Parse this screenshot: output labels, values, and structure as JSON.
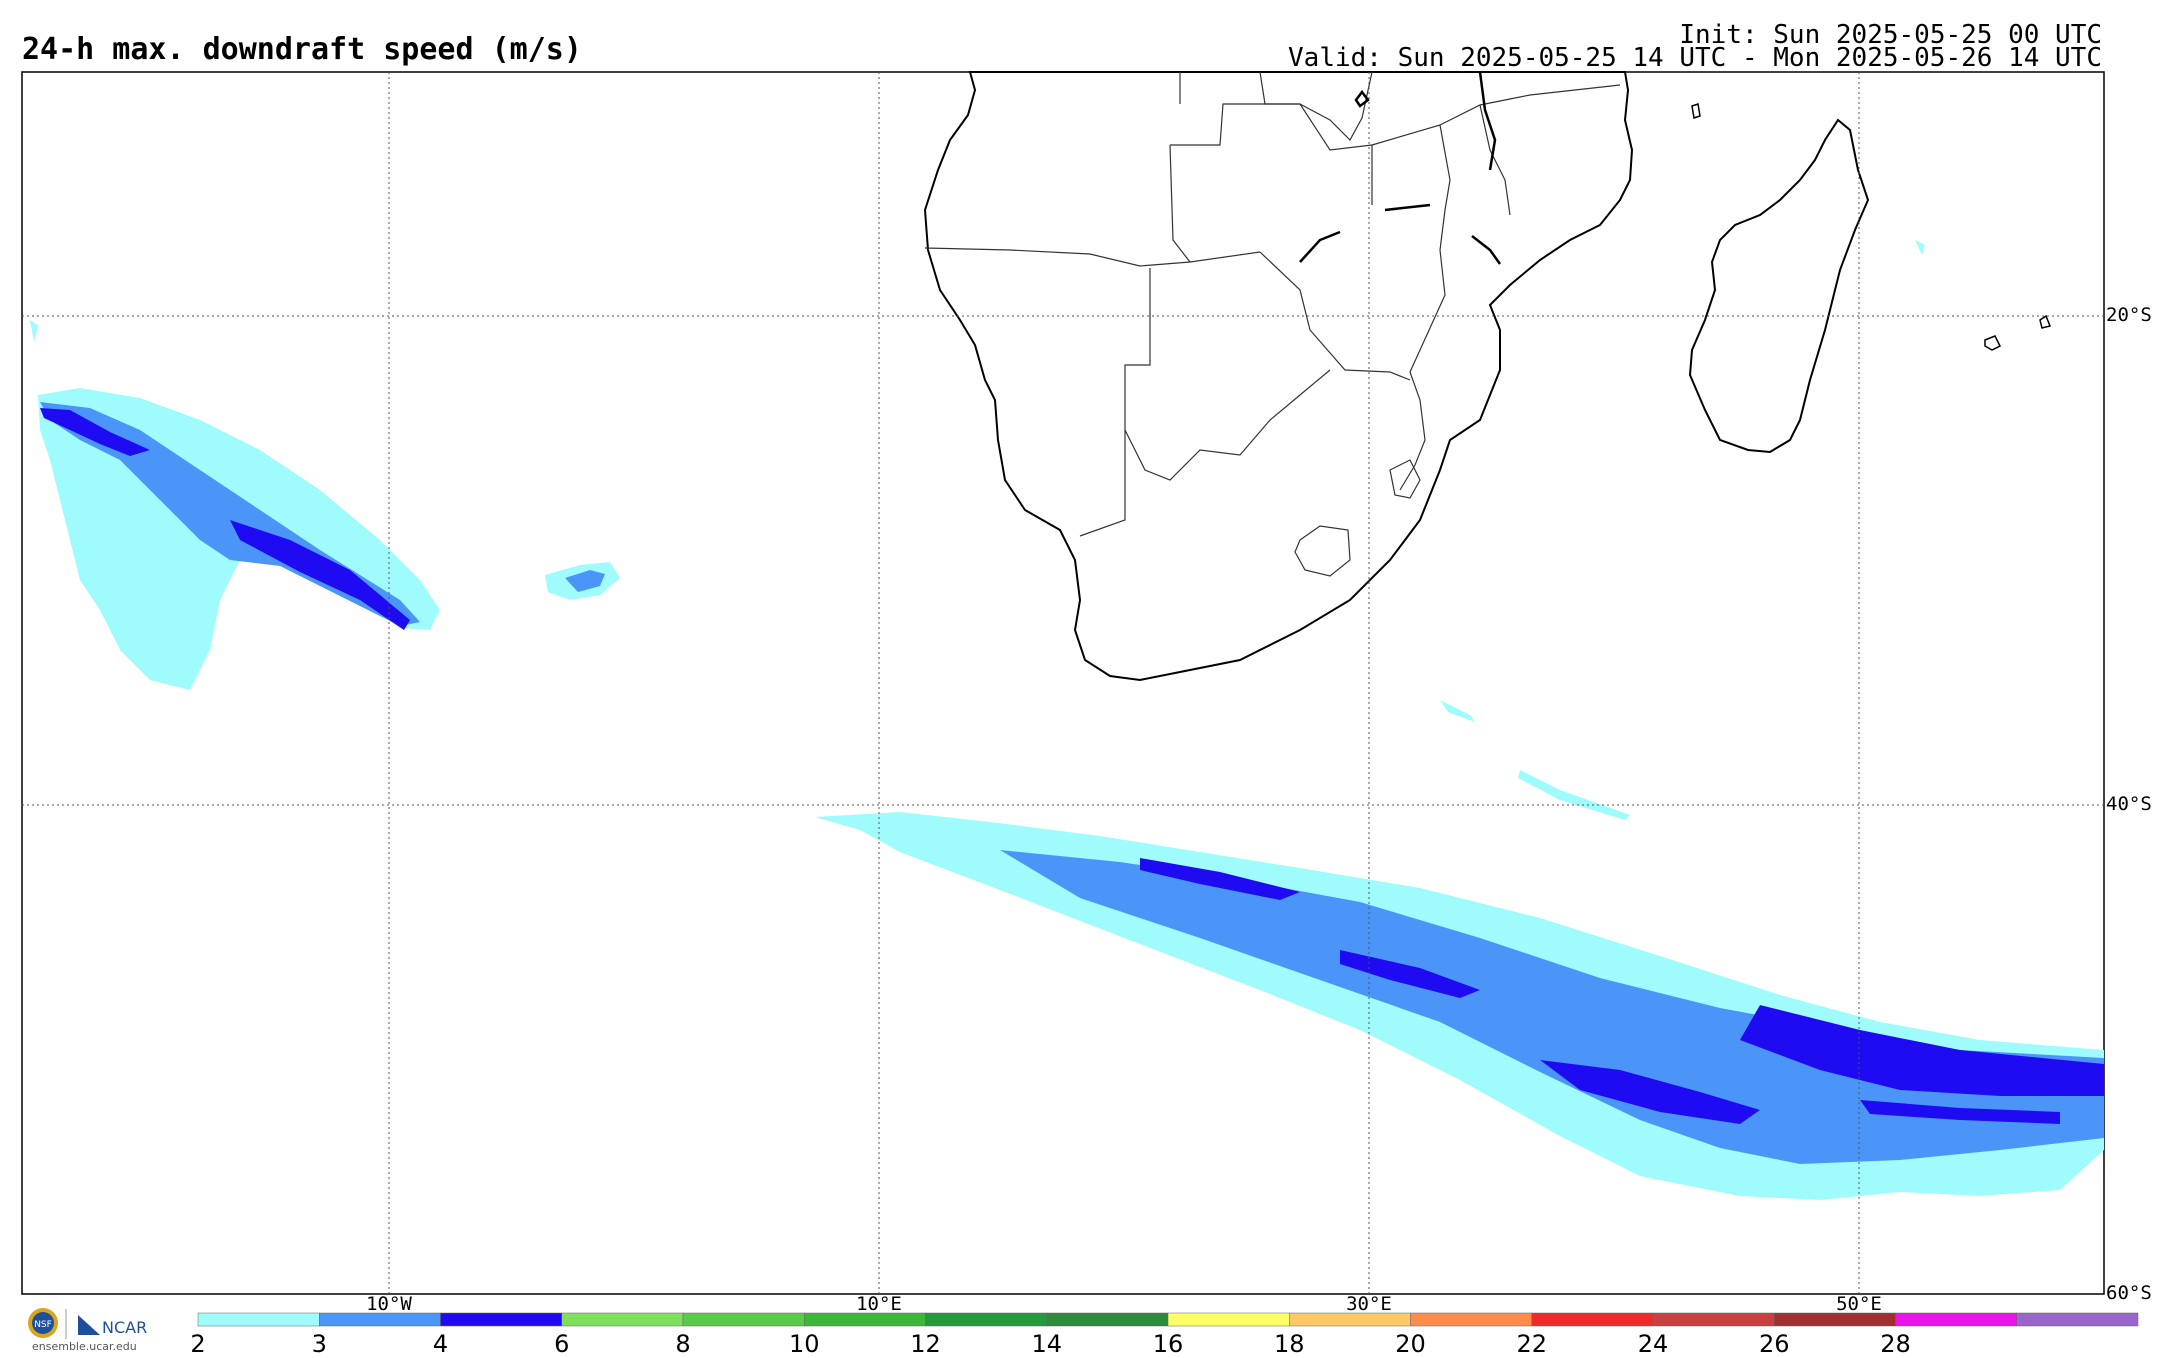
{
  "header": {
    "title": "24-h max. downdraft speed (m/s)",
    "init": "Init: Sun 2025-05-25 00 UTC",
    "valid": "Valid: Sun 2025-05-25 14 UTC - Mon 2025-05-26 14 UTC"
  },
  "map": {
    "lat_labels": [
      "20°S",
      "40°S",
      "60°S"
    ],
    "lon_labels": [
      "10°W",
      "10°E",
      "30°E",
      "50°E"
    ],
    "grid": "dotted"
  },
  "colorbar": {
    "labels": [
      "2",
      "3",
      "4",
      "6",
      "8",
      "10",
      "12",
      "14",
      "16",
      "18",
      "20",
      "22",
      "24",
      "26",
      "28"
    ],
    "colors": [
      "#a0fcfc",
      "#4c95f8",
      "#1f0bf2",
      "#7fe05c",
      "#58cc4a",
      "#3bb83b",
      "#239a3c",
      "#2e8b3c",
      "#ffff66",
      "#ffc866",
      "#ff8c4a",
      "#f02a2a",
      "#c84040",
      "#a03030",
      "#e814e8",
      "#9a66cc"
    ]
  },
  "logo": {
    "org1": "NSF",
    "org2": "NCAR",
    "url": "ensemble.ucar.edu"
  },
  "colors": {
    "light": "#a0fcfc",
    "mid": "#4c95f8",
    "dark": "#1f0bf2"
  }
}
